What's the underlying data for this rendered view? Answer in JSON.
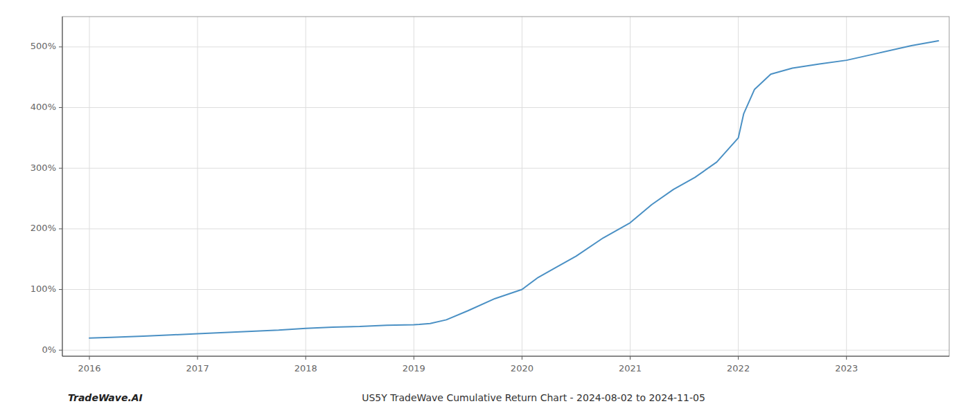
{
  "chart_data": {
    "type": "line",
    "title": "US5Y TradeWave Cumulative Return Chart - 2024-08-02 to 2024-11-05",
    "annotations": [
      "TradeWave.AI"
    ],
    "color": "#4a90c4",
    "x": [
      2016.0,
      2016.2,
      2016.5,
      2016.75,
      2017.0,
      2017.25,
      2017.5,
      2017.75,
      2018.0,
      2018.25,
      2018.5,
      2018.75,
      2019.0,
      2019.05,
      2019.15,
      2019.3,
      2019.5,
      2019.75,
      2020.0,
      2020.15,
      2020.3,
      2020.5,
      2020.75,
      2021.0,
      2021.2,
      2021.4,
      2021.6,
      2021.8,
      2022.0,
      2022.05,
      2022.15,
      2022.3,
      2022.5,
      2022.75,
      2023.0,
      2023.3,
      2023.6,
      2023.85
    ],
    "values": [
      20,
      21,
      23,
      25,
      27,
      29,
      31,
      33,
      36,
      38,
      39,
      41,
      42,
      42.5,
      44,
      50,
      65,
      85,
      100,
      120,
      135,
      155,
      185,
      210,
      240,
      265,
      285,
      310,
      350,
      390,
      430,
      455,
      465,
      472,
      478,
      490,
      502,
      510
    ],
    "xlim": [
      2015.75,
      2023.95
    ],
    "ylim": [
      -10,
      550
    ],
    "xticks": [
      2016,
      2017,
      2018,
      2019,
      2020,
      2021,
      2022,
      2023
    ],
    "yticks": [
      {
        "value": 0,
        "label": "0%"
      },
      {
        "value": 100,
        "label": "100%"
      },
      {
        "value": 200,
        "label": "200%"
      },
      {
        "value": 300,
        "label": "300%"
      },
      {
        "value": 400,
        "label": "400%"
      },
      {
        "value": 500,
        "label": "500%"
      }
    ],
    "grid": true
  }
}
